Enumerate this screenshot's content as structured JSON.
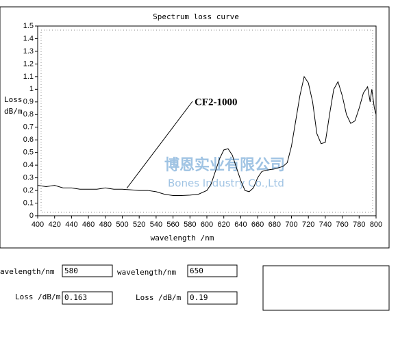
{
  "chart_data": {
    "type": "line",
    "title": "Spectrum loss curve",
    "xlabel": "wavelength /nm",
    "ylabel": [
      "Loss",
      "dB/m"
    ],
    "annotation": "CF2-1000",
    "watermark": [
      "博恩实业有限公司",
      "Bones Industry Co.,Ltd"
    ],
    "color": "#000000",
    "xlim": [
      400,
      800
    ],
    "ylim": [
      0,
      1.5
    ],
    "xticks": [
      400,
      420,
      440,
      460,
      480,
      500,
      520,
      540,
      560,
      580,
      600,
      620,
      640,
      660,
      680,
      700,
      720,
      740,
      760,
      780,
      800
    ],
    "yticks": [
      0,
      0.1,
      0.2,
      0.3,
      0.4,
      0.5,
      0.6,
      0.7,
      0.8,
      0.9,
      1,
      1.1,
      1.2,
      1.3,
      1.4,
      1.5
    ],
    "grid": false,
    "x": [
      400,
      410,
      420,
      430,
      440,
      450,
      460,
      470,
      480,
      490,
      500,
      510,
      520,
      530,
      540,
      550,
      560,
      570,
      580,
      590,
      600,
      605,
      610,
      615,
      620,
      625,
      630,
      635,
      640,
      645,
      650,
      655,
      660,
      665,
      670,
      680,
      690,
      695,
      700,
      705,
      710,
      715,
      720,
      725,
      730,
      735,
      740,
      745,
      750,
      755,
      760,
      765,
      770,
      775,
      780,
      785,
      790,
      793,
      795,
      798,
      800
    ],
    "values": [
      0.24,
      0.23,
      0.24,
      0.22,
      0.22,
      0.21,
      0.21,
      0.21,
      0.22,
      0.21,
      0.21,
      0.205,
      0.2,
      0.2,
      0.19,
      0.17,
      0.16,
      0.16,
      0.163,
      0.17,
      0.2,
      0.25,
      0.35,
      0.45,
      0.52,
      0.53,
      0.48,
      0.38,
      0.28,
      0.2,
      0.19,
      0.22,
      0.3,
      0.35,
      0.36,
      0.37,
      0.39,
      0.42,
      0.55,
      0.75,
      0.95,
      1.1,
      1.05,
      0.9,
      0.65,
      0.57,
      0.58,
      0.8,
      1.0,
      1.06,
      0.95,
      0.8,
      0.73,
      0.75,
      0.85,
      0.97,
      1.02,
      0.9,
      1.0,
      0.85,
      0.8
    ]
  },
  "form": {
    "fields": [
      {
        "label": "avelength/nm",
        "value": "580"
      },
      {
        "label": "wavelength/nm",
        "value": "650"
      },
      {
        "label": "Loss /dB/m",
        "value": "0.163"
      },
      {
        "label": "Loss /dB/m",
        "value": "0.19"
      }
    ]
  }
}
